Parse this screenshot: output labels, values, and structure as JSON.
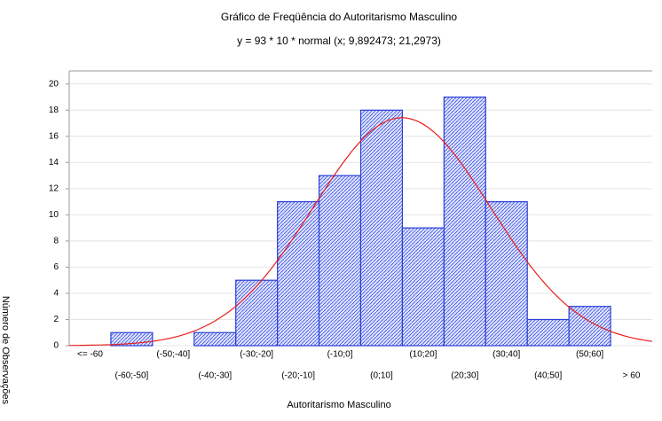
{
  "chart_data": {
    "type": "histogram",
    "title": "Gráfico de Freqüência do Autoritarismo Masculino",
    "subtitle": "y = 93 * 10 * normal (x; 9,892473; 21,2973)",
    "x_label": "Autoritarismo Masculino",
    "y_label": "Número de Observações",
    "categories": [
      "<= -60",
      "(-60;-50]",
      "(-50;-40]",
      "(-40;-30]",
      "(-30;-20]",
      "(-20;-10]",
      "(-10;0]",
      "(0;10]",
      "(10;20]",
      "(20;30]",
      "(30;40]",
      "(40;50]",
      "(50;60]",
      "> 60"
    ],
    "values": [
      0,
      1,
      0,
      1,
      5,
      11,
      13,
      18,
      9,
      19,
      11,
      2,
      3,
      0
    ],
    "color": "#2b3fd6",
    "xlim": [
      -70,
      70
    ],
    "ylim": [
      0,
      21
    ],
    "yticks": [
      0,
      2,
      4,
      6,
      8,
      10,
      12,
      14,
      16,
      18,
      20
    ],
    "grid": true,
    "fit": {
      "n": 93,
      "bin_width": 10,
      "mean": 9.892473,
      "sd": 21.2973,
      "color": "#e8201c"
    }
  }
}
